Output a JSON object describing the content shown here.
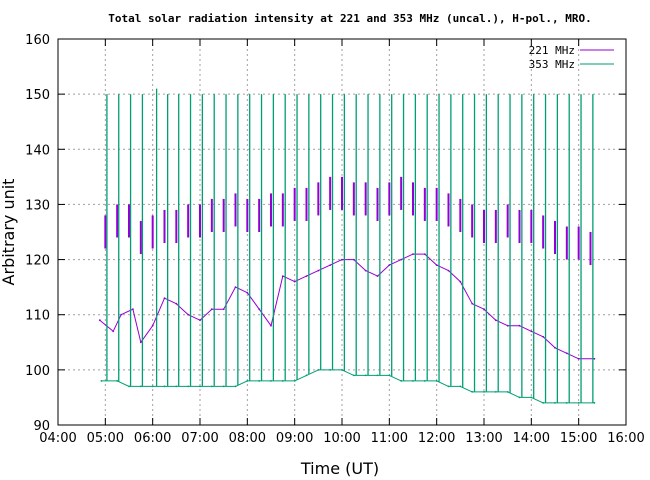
{
  "chart_data": {
    "type": "line",
    "title": "Total solar radiation intensity at 221 and 353 MHz (uncal.), H-pol., MRO.",
    "xlabel": "Time (UT)",
    "ylabel": "Arbitrary unit",
    "xlim": [
      "04:00",
      "16:00"
    ],
    "ylim": [
      90,
      160
    ],
    "x_ticks": [
      "04:00",
      "05:00",
      "06:00",
      "07:00",
      "08:00",
      "09:00",
      "10:00",
      "11:00",
      "12:00",
      "13:00",
      "14:00",
      "15:00",
      "16:00"
    ],
    "y_ticks": [
      90,
      100,
      110,
      120,
      130,
      140,
      150,
      160
    ],
    "grid": true,
    "legend_position": "top-right",
    "legend": [
      "221 MHz",
      "353 MHz"
    ],
    "series": [
      {
        "name": "221 MHz",
        "color": "#9400d3",
        "baseline": [
          [
            "04:53",
            109
          ],
          [
            "05:10",
            107
          ],
          [
            "05:20",
            110
          ],
          [
            "05:35",
            111
          ],
          [
            "05:45",
            105
          ],
          [
            "06:00",
            108
          ],
          [
            "06:15",
            113
          ],
          [
            "06:30",
            112
          ],
          [
            "06:45",
            110
          ],
          [
            "07:00",
            109
          ],
          [
            "07:15",
            111
          ],
          [
            "07:30",
            111
          ],
          [
            "07:45",
            115
          ],
          [
            "08:00",
            114
          ],
          [
            "08:15",
            111
          ],
          [
            "08:30",
            108
          ],
          [
            "08:45",
            117
          ],
          [
            "09:00",
            116
          ],
          [
            "09:15",
            117
          ],
          [
            "09:30",
            118
          ],
          [
            "09:45",
            119
          ],
          [
            "10:00",
            120
          ],
          [
            "10:15",
            120
          ],
          [
            "10:30",
            118
          ],
          [
            "10:45",
            117
          ],
          [
            "11:00",
            119
          ],
          [
            "11:15",
            120
          ],
          [
            "11:30",
            121
          ],
          [
            "11:45",
            121
          ],
          [
            "12:00",
            119
          ],
          [
            "12:15",
            118
          ],
          [
            "12:30",
            116
          ],
          [
            "12:45",
            112
          ],
          [
            "13:00",
            111
          ],
          [
            "13:15",
            109
          ],
          [
            "13:30",
            108
          ],
          [
            "13:45",
            108
          ],
          [
            "14:00",
            107
          ],
          [
            "14:15",
            106
          ],
          [
            "14:30",
            104
          ],
          [
            "14:45",
            103
          ],
          [
            "15:00",
            102
          ],
          [
            "15:20",
            102
          ]
        ],
        "spikes": [
          [
            "05:00",
            128
          ],
          [
            "05:15",
            130
          ],
          [
            "05:30",
            130
          ],
          [
            "05:45",
            127
          ],
          [
            "06:00",
            128
          ],
          [
            "06:15",
            129
          ],
          [
            "06:30",
            129
          ],
          [
            "06:45",
            130
          ],
          [
            "07:00",
            130
          ],
          [
            "07:15",
            131
          ],
          [
            "07:30",
            131
          ],
          [
            "07:45",
            132
          ],
          [
            "08:00",
            131
          ],
          [
            "08:15",
            131
          ],
          [
            "08:30",
            132
          ],
          [
            "08:45",
            132
          ],
          [
            "09:00",
            133
          ],
          [
            "09:15",
            133
          ],
          [
            "09:30",
            134
          ],
          [
            "09:45",
            135
          ],
          [
            "10:00",
            135
          ],
          [
            "10:15",
            134
          ],
          [
            "10:30",
            134
          ],
          [
            "10:45",
            133
          ],
          [
            "11:00",
            134
          ],
          [
            "11:15",
            135
          ],
          [
            "11:30",
            134
          ],
          [
            "11:45",
            133
          ],
          [
            "12:00",
            133
          ],
          [
            "12:15",
            132
          ],
          [
            "12:30",
            131
          ],
          [
            "12:45",
            130
          ],
          [
            "13:00",
            129
          ],
          [
            "13:15",
            129
          ],
          [
            "13:30",
            130
          ],
          [
            "13:45",
            129
          ],
          [
            "14:00",
            129
          ],
          [
            "14:15",
            128
          ],
          [
            "14:30",
            127
          ],
          [
            "14:45",
            126
          ],
          [
            "15:00",
            126
          ],
          [
            "15:15",
            125
          ]
        ]
      },
      {
        "name": "353 MHz",
        "color": "#009e73",
        "baseline": [
          [
            "04:55",
            98
          ],
          [
            "05:15",
            98
          ],
          [
            "05:30",
            97
          ],
          [
            "05:45",
            97
          ],
          [
            "06:00",
            97
          ],
          [
            "06:15",
            97
          ],
          [
            "06:30",
            97
          ],
          [
            "06:45",
            97
          ],
          [
            "07:00",
            97
          ],
          [
            "07:15",
            97
          ],
          [
            "07:30",
            97
          ],
          [
            "07:45",
            97
          ],
          [
            "08:00",
            98
          ],
          [
            "08:15",
            98
          ],
          [
            "08:30",
            98
          ],
          [
            "08:45",
            98
          ],
          [
            "09:00",
            98
          ],
          [
            "09:15",
            99
          ],
          [
            "09:30",
            100
          ],
          [
            "09:45",
            100
          ],
          [
            "10:00",
            100
          ],
          [
            "10:15",
            99
          ],
          [
            "10:30",
            99
          ],
          [
            "10:45",
            99
          ],
          [
            "11:00",
            99
          ],
          [
            "11:15",
            98
          ],
          [
            "11:30",
            98
          ],
          [
            "11:45",
            98
          ],
          [
            "12:00",
            98
          ],
          [
            "12:15",
            97
          ],
          [
            "12:30",
            97
          ],
          [
            "12:45",
            96
          ],
          [
            "13:00",
            96
          ],
          [
            "13:15",
            96
          ],
          [
            "13:30",
            96
          ],
          [
            "13:45",
            95
          ],
          [
            "14:00",
            95
          ],
          [
            "14:15",
            94
          ],
          [
            "14:30",
            94
          ],
          [
            "14:45",
            94
          ],
          [
            "15:00",
            94
          ],
          [
            "15:20",
            94
          ]
        ],
        "spikes": [
          [
            "05:02",
            150
          ],
          [
            "05:17",
            150
          ],
          [
            "05:32",
            150
          ],
          [
            "05:47",
            150
          ],
          [
            "06:05",
            151
          ],
          [
            "06:19",
            150
          ],
          [
            "06:33",
            150
          ],
          [
            "06:48",
            150
          ],
          [
            "07:03",
            150
          ],
          [
            "07:18",
            150
          ],
          [
            "07:33",
            150
          ],
          [
            "07:48",
            150
          ],
          [
            "08:03",
            150
          ],
          [
            "08:18",
            150
          ],
          [
            "08:33",
            150
          ],
          [
            "08:48",
            150
          ],
          [
            "09:03",
            150
          ],
          [
            "09:18",
            150
          ],
          [
            "09:33",
            150
          ],
          [
            "09:48",
            150
          ],
          [
            "10:03",
            150
          ],
          [
            "10:18",
            150
          ],
          [
            "10:33",
            150
          ],
          [
            "10:48",
            150
          ],
          [
            "11:03",
            150
          ],
          [
            "11:18",
            150
          ],
          [
            "11:33",
            150
          ],
          [
            "11:48",
            150
          ],
          [
            "12:03",
            150
          ],
          [
            "12:18",
            150
          ],
          [
            "12:33",
            150
          ],
          [
            "12:48",
            150
          ],
          [
            "13:03",
            150
          ],
          [
            "13:18",
            150
          ],
          [
            "13:33",
            150
          ],
          [
            "13:48",
            150
          ],
          [
            "14:03",
            150
          ],
          [
            "14:18",
            150
          ],
          [
            "14:33",
            150
          ],
          [
            "14:48",
            150
          ],
          [
            "15:03",
            150
          ],
          [
            "15:18",
            150
          ]
        ]
      }
    ]
  }
}
